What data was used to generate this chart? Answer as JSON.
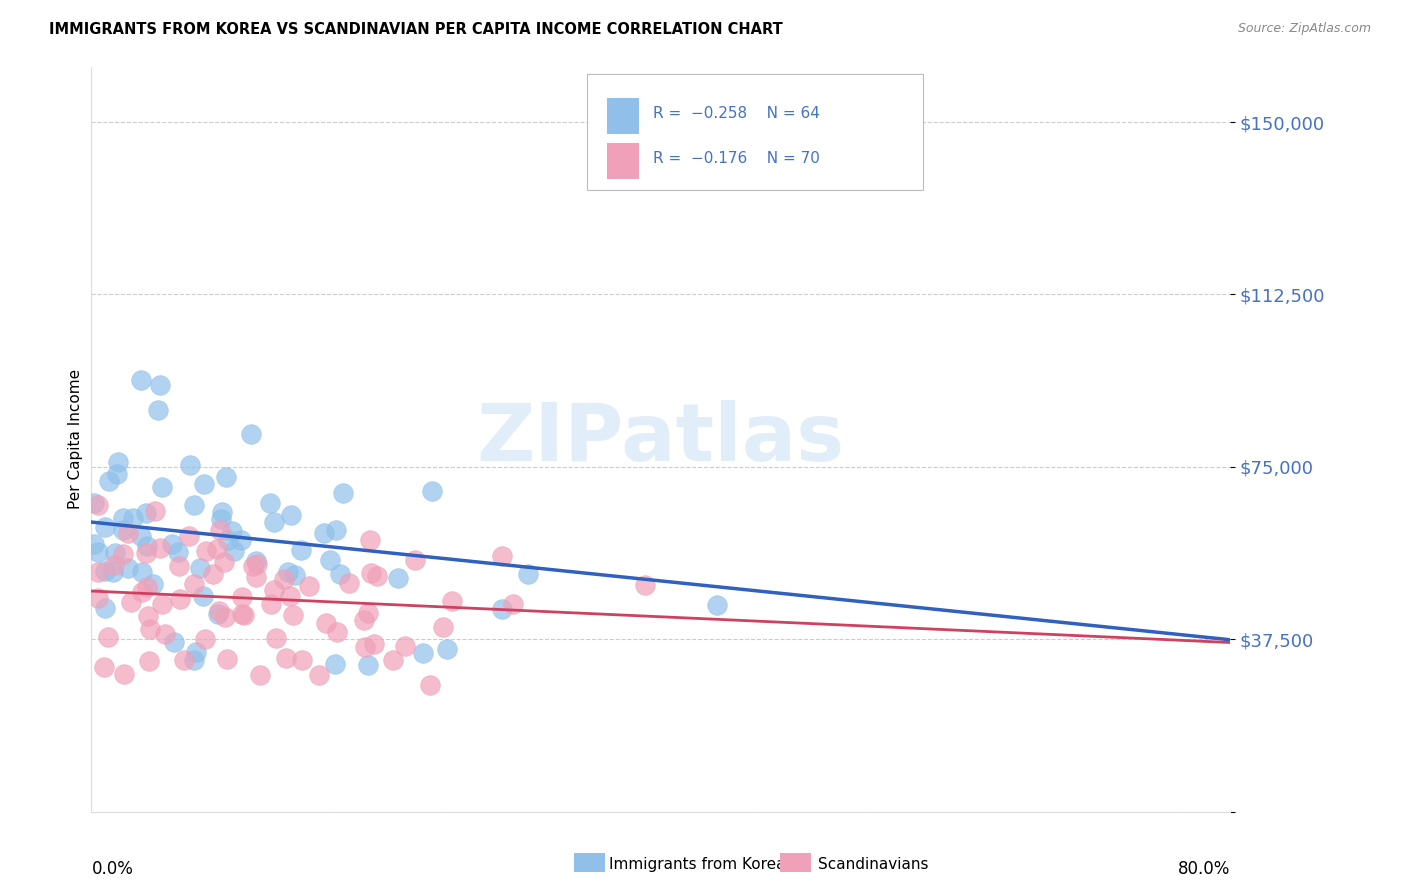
{
  "title": "IMMIGRANTS FROM KOREA VS SCANDINAVIAN PER CAPITA INCOME CORRELATION CHART",
  "source": "Source: ZipAtlas.com",
  "ylabel": "Per Capita Income",
  "legend_blue_label": "Immigrants from Korea",
  "legend_pink_label": "Scandinavians",
  "watermark": "ZIPatlas",
  "blue_color": "#90c0ea",
  "pink_color": "#f0a0b8",
  "line_blue": "#3060c0",
  "line_pink": "#d04060",
  "tick_label_color": "#4472c4",
  "b_intercept": 63000,
  "b_slope": -320,
  "b_noise": 13000,
  "p_intercept": 48000,
  "p_slope": -140,
  "p_noise": 9000,
  "ylim_min": 0,
  "ylim_max": 162000,
  "xlim_min": 0,
  "xlim_max": 80,
  "ytick_vals": [
    0,
    37500,
    75000,
    112500,
    150000
  ],
  "ytick_labels": [
    "",
    "$37,500",
    "$75,000",
    "$112,500",
    "$150,000"
  ]
}
